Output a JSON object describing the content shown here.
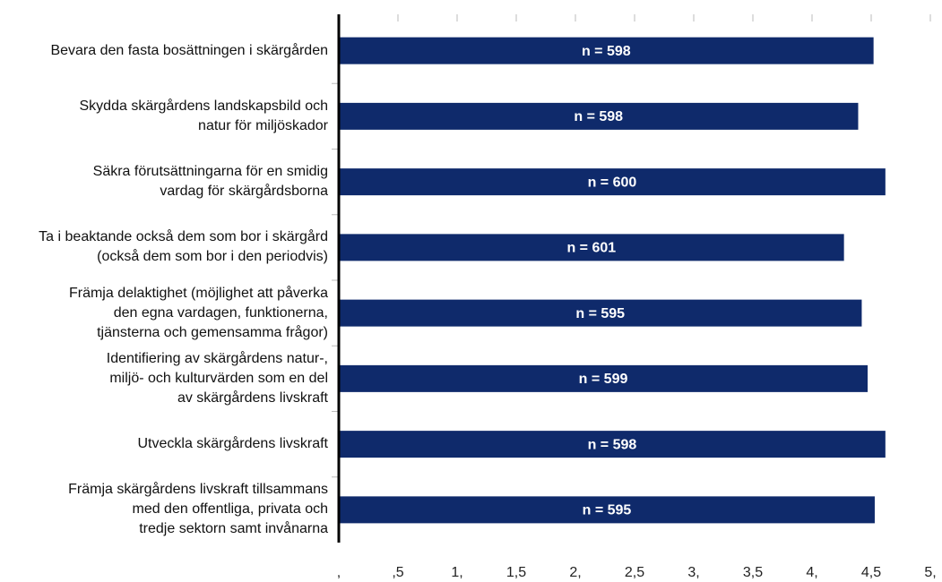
{
  "chart_data": {
    "type": "barh",
    "categories": [
      "Bevara den fasta bosättningen i skärgården",
      "Skydda skärgårdens landskapsbild och\nnatur för miljöskador",
      "Säkra förutsättningarna för en smidig\nvardag för skärgårdsborna",
      "Ta i beaktande också dem som bor i skärgård\n(också dem som bor i den periodvis)",
      "Främja delaktighet (möjlighet att påverka\nden egna vardagen, funktionerna,\ntjänsterna och gemensamma frågor)",
      "Identifiering av skärgårdens natur-,\nmiljö- och kulturvärden som en del\nav skärgårdens livskraft",
      "Utveckla skärgårdens livskraft",
      "Främja skärgårdens livskraft tillsammans\nmed den offentliga, privata och\ntredje sektorn samt invånarna"
    ],
    "values": [
      4.52,
      4.39,
      4.62,
      4.27,
      4.42,
      4.47,
      4.62,
      4.53
    ],
    "annotations": [
      "n = 598",
      "n = 598",
      "n = 600",
      "n = 601",
      "n = 595",
      "n = 599",
      "n = 598",
      "n = 595"
    ],
    "color": "#0f2a6b",
    "xlim": [
      0,
      5
    ],
    "xticks": [
      {
        "value": 0,
        "label": ","
      },
      {
        "value": 0.5,
        "label": ",5"
      },
      {
        "value": 1,
        "label": "1,"
      },
      {
        "value": 1.5,
        "label": "1,5"
      },
      {
        "value": 2,
        "label": "2,"
      },
      {
        "value": 2.5,
        "label": "2,5"
      },
      {
        "value": 3,
        "label": "3,"
      },
      {
        "value": 3.5,
        "label": "3,5"
      },
      {
        "value": 4,
        "label": "4,"
      },
      {
        "value": 4.5,
        "label": "4,5"
      },
      {
        "value": 5,
        "label": "5,"
      }
    ]
  }
}
